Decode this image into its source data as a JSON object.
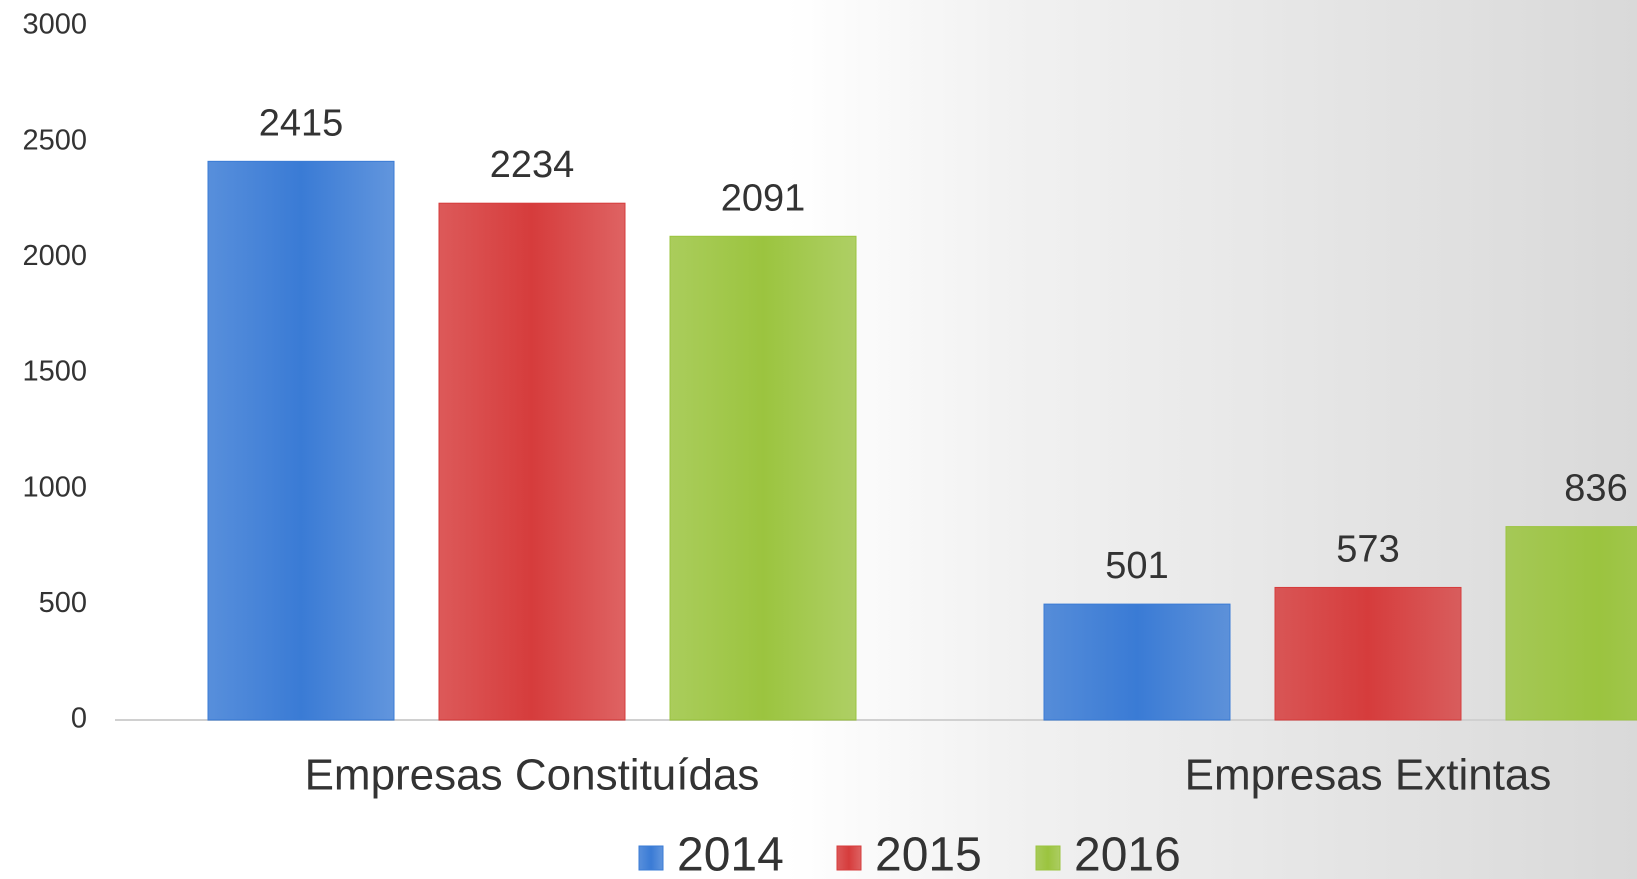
{
  "chart_data": {
    "type": "bar",
    "categories": [
      "Empresas Constituídas",
      "Empresas Extintas"
    ],
    "series": [
      {
        "name": "2014",
        "color": "#3a7bd5",
        "values": [
          2415,
          501
        ]
      },
      {
        "name": "2015",
        "color": "#d63c3c",
        "values": [
          2234,
          573
        ]
      },
      {
        "name": "2016",
        "color": "#9bc43f",
        "values": [
          2091,
          836
        ]
      }
    ],
    "ylim": [
      0,
      3000
    ],
    "yticks": [
      0,
      500,
      1000,
      1500,
      2000,
      2500,
      3000
    ],
    "grid": false,
    "legend": "bottom"
  }
}
